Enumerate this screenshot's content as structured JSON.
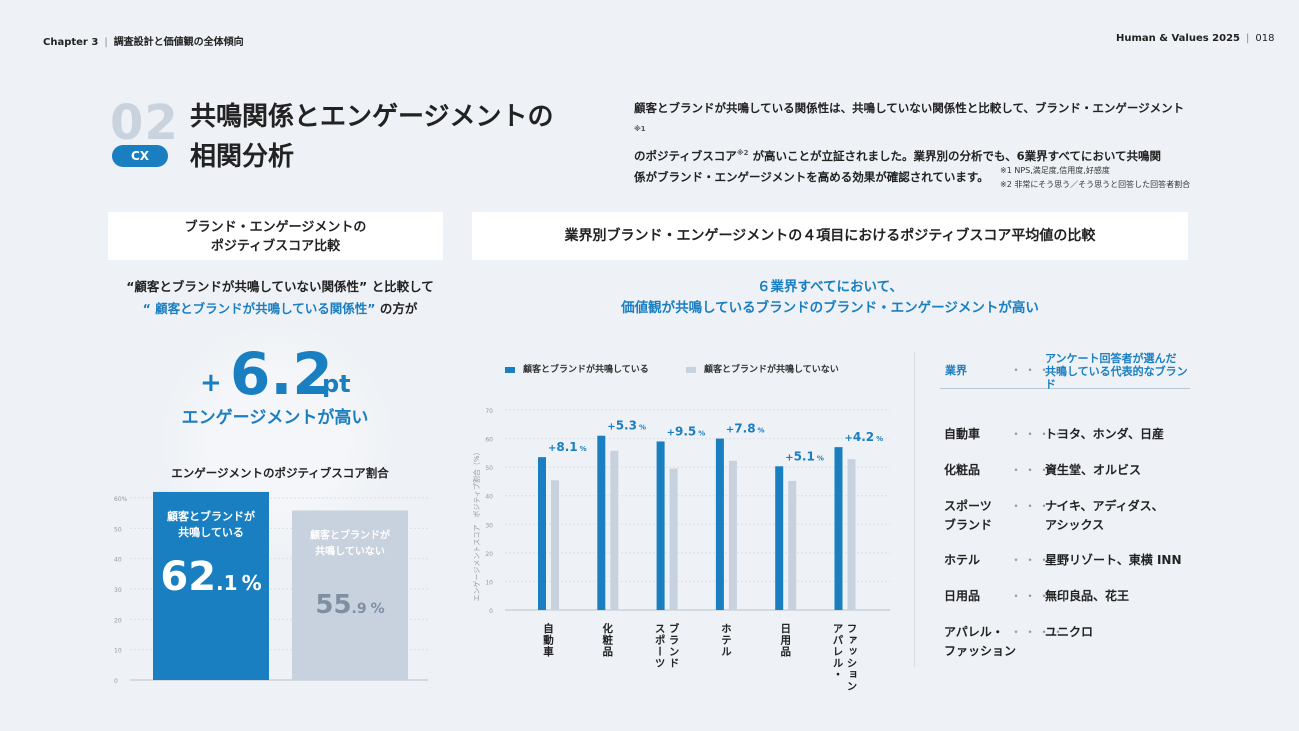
{
  "header": {
    "chapter": "Chapter 3",
    "chapter_title": "調査設計と価値観の全体傾向",
    "report": "Human & Values 2025",
    "page": "018"
  },
  "section": {
    "number": "02",
    "tag": "CX",
    "title_line1": "共鳴関係とエンゲージメントの",
    "title_line2": "相関分析"
  },
  "description": {
    "line1": "顧客とブランドが共鳴している関係性は、共鳴していない関係性と比較して、ブランド・エンゲージメント",
    "note1_mark": "※1",
    "line2a": "のポジティブスコア",
    "note2_mark": "※2",
    "line2b": "が高いことが立証されました。業界別の分析でも、6業界すべてにおいて共鳴関",
    "line3": "係がブランド・エンゲージメントを高める効果が確認されています。",
    "footnote1": "※1 NPS,満足度,信用度,好感度",
    "footnote2": "※2 非常にそう思う／そう思うと回答した回答者割合"
  },
  "left_panel": {
    "box_title_line1": "ブランド・エンゲージメントの",
    "box_title_line2": "ポジティブスコア比較",
    "lead_line1": "“顧客とブランドが共鳴していない関係性” と比較して",
    "lead_line2_blue": "“ 顧客とブランドが共鳴している関係性”",
    "lead_line2_rest": " の方が",
    "highlight_plus": "+",
    "highlight_value": "6.2",
    "highlight_unit": "pt",
    "highlight_sub": "エンゲージメントが高い",
    "chart_title": "エンゲージメントのポジティブスコア割合"
  },
  "right_panel": {
    "box_title": "業界別ブランド・エンゲージメントの４項目におけるポジティブスコア平均値の比較",
    "lead_line1": "６業界すべてにおいて、",
    "lead_line2": "価値観が共鳴しているブランドのブランド・エンゲージメントが高い",
    "legend_resonant": "顧客とブランドが共鳴している",
    "legend_nonresonant": "顧客とブランドが共鳴していない",
    "y_axis_label": "エンゲージメントスコア　ポジティブ割合（%）"
  },
  "industry_table": {
    "header_industry": "業界",
    "header_brands_line1": "アンケート回答者が選んだ",
    "header_brands_line2": "共鳴している代表的なブランド",
    "dots": "・・・・",
    "rows": [
      {
        "industry": "自動車",
        "brands": "トヨタ、ホンダ、日産"
      },
      {
        "industry": "化粧品",
        "brands": "資生堂、オルビス"
      },
      {
        "industry": "スポーツ\nブランド",
        "brands": "ナイキ、アディダス、\nアシックス"
      },
      {
        "industry": "ホテル",
        "brands": "星野リゾート、東横 INN"
      },
      {
        "industry": "日用品",
        "brands": "無印良品、花王"
      },
      {
        "industry": "アパレル・\nファッション",
        "brands": "ユニクロ"
      }
    ]
  },
  "colors": {
    "resonant": "#1a7fc1",
    "nonresonant": "#c8d2de",
    "background": "#eef1f5"
  },
  "chart_data": [
    {
      "type": "bar",
      "title": "エンゲージメントのポジティブスコア割合",
      "categories": [
        "顧客とブランドが共鳴している",
        "顧客とブランドが共鳴していない"
      ],
      "values": [
        62.1,
        55.9
      ],
      "value_labels": [
        {
          "int": "62",
          "dec": ".1",
          "unit": "%"
        },
        {
          "int": "55",
          "dec": ".9",
          "unit": "%"
        }
      ],
      "bar_labels": [
        [
          "顧客とブランドが",
          "共鳴している"
        ],
        [
          "顧客とブランドが",
          "共鳴していない"
        ]
      ],
      "ylim": [
        0,
        60
      ],
      "yticks": [
        "0",
        "10",
        "20",
        "30",
        "40",
        "50",
        "60%"
      ],
      "grid": true
    },
    {
      "type": "bar",
      "title": "業界別ブランド・エンゲージメントの４項目におけるポジティブスコア平均値の比較",
      "categories": [
        "自動車",
        "化粧品",
        "スポーツ\nブランド",
        "ホテル",
        "日用品",
        "アパレル・\nファッション"
      ],
      "series": [
        {
          "name": "顧客とブランドが共鳴している",
          "values": [
            53.5,
            61.0,
            59.0,
            60.0,
            50.3,
            57.0
          ]
        },
        {
          "name": "顧客とブランドが共鳴していない",
          "values": [
            45.4,
            55.7,
            49.5,
            52.2,
            45.2,
            52.8
          ]
        }
      ],
      "differences": [
        {
          "sign": "+",
          "value": "8.1",
          "unit": "%"
        },
        {
          "sign": "+",
          "value": "5.3",
          "unit": "%"
        },
        {
          "sign": "+",
          "value": "9.5",
          "unit": "%"
        },
        {
          "sign": "+",
          "value": "7.8",
          "unit": "%"
        },
        {
          "sign": "+",
          "value": "5.1",
          "unit": "%"
        },
        {
          "sign": "+",
          "value": "4.2",
          "unit": "%"
        }
      ],
      "ylim": [
        0,
        70
      ],
      "yticks": [
        "0",
        "10",
        "20",
        "30",
        "40",
        "50",
        "60",
        "70"
      ],
      "ylabel": "エンゲージメントスコア　ポジティブ割合（%）",
      "legend": "top",
      "grid": true
    }
  ]
}
